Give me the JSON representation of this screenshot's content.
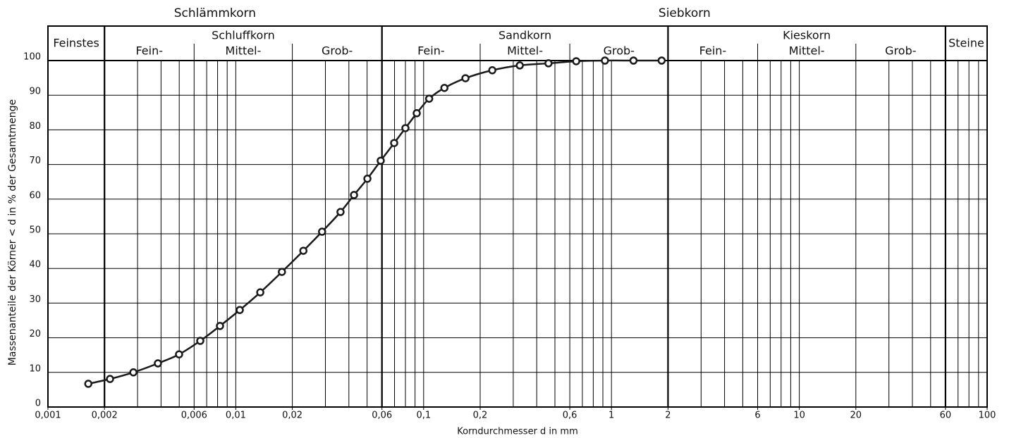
{
  "chart_data": {
    "type": "line",
    "x_label": "Korndurchmesser d in mm",
    "y_label": "Massenanteile der Körner < d in % der Gesamtmenge",
    "log_x": true,
    "grid": true,
    "color": "#1a1a1a",
    "marker": "circle",
    "xlim": [
      0.001,
      100
    ],
    "ylim": [
      0,
      100
    ],
    "xticks": [
      {
        "value": 0.001,
        "label": "0,001"
      },
      {
        "value": 0.002,
        "label": "0,002"
      },
      {
        "value": 0.006,
        "label": "0,006"
      },
      {
        "value": 0.01,
        "label": "0,01"
      },
      {
        "value": 0.02,
        "label": "0,02"
      },
      {
        "value": 0.06,
        "label": "0,06"
      },
      {
        "value": 0.1,
        "label": "0,1"
      },
      {
        "value": 0.2,
        "label": "0,2"
      },
      {
        "value": 0.6,
        "label": "0,6"
      },
      1,
      2,
      6,
      10,
      20,
      60,
      100
    ],
    "xgrid": [
      0.002,
      0.003,
      0.004,
      0.005,
      0.006,
      0.007,
      0.008,
      0.009,
      0.01,
      0.02,
      0.03,
      0.04,
      0.05,
      0.06,
      0.07,
      0.08,
      0.09,
      0.1,
      0.2,
      0.3,
      0.4,
      0.5,
      0.6,
      0.7,
      0.8,
      0.9,
      1,
      2,
      3,
      4,
      5,
      6,
      7,
      8,
      9,
      10,
      20,
      30,
      40,
      50,
      60,
      70,
      80,
      90
    ],
    "yticks": [
      0,
      10,
      20,
      30,
      40,
      50,
      60,
      70,
      80,
      90,
      100
    ],
    "groups": [
      {
        "name": "Schlämmkorn",
        "from": 0.001,
        "to": 0.06
      },
      {
        "name": "Siebkorn",
        "from": 0.06,
        "to": 100
      }
    ],
    "classes": [
      {
        "name": "Feinstes",
        "from": 0.001,
        "to": 0.002
      },
      {
        "name": "Schluffkorn",
        "from": 0.002,
        "to": 0.06,
        "subclasses": [
          "Fein-",
          "Mittel-",
          "Grob-"
        ],
        "sub_bounds": [
          0.006,
          0.02
        ]
      },
      {
        "name": "Sandkorn",
        "from": 0.06,
        "to": 2,
        "subclasses": [
          "Fein-",
          "Mittel-",
          "Grob-"
        ],
        "sub_bounds": [
          0.2,
          0.6
        ]
      },
      {
        "name": "Kieskorn",
        "from": 2,
        "to": 60,
        "subclasses": [
          "Fein-",
          "Mittel-",
          "Grob-"
        ],
        "sub_bounds": [
          6,
          20
        ]
      },
      {
        "name": "Steine",
        "from": 60,
        "to": 100
      }
    ],
    "x": [
      0.00164,
      0.00214,
      0.00285,
      0.00385,
      0.00499,
      0.00647,
      0.00824,
      0.0105,
      0.0135,
      0.0176,
      0.0229,
      0.0288,
      0.0361,
      0.0426,
      0.0502,
      0.0591,
      0.0697,
      0.08,
      0.0919,
      0.107,
      0.129,
      0.167,
      0.232,
      0.325,
      0.462,
      0.649,
      0.923,
      1.31,
      1.85
    ],
    "values": [
      6.7,
      8.1,
      10.0,
      12.6,
      15.2,
      19.1,
      23.4,
      28.0,
      33.1,
      39.0,
      45.1,
      50.6,
      56.3,
      61.2,
      65.9,
      71.1,
      76.2,
      80.5,
      84.8,
      89.0,
      92.1,
      94.9,
      97.2,
      98.6,
      99.2,
      99.8,
      100,
      100,
      100
    ]
  }
}
